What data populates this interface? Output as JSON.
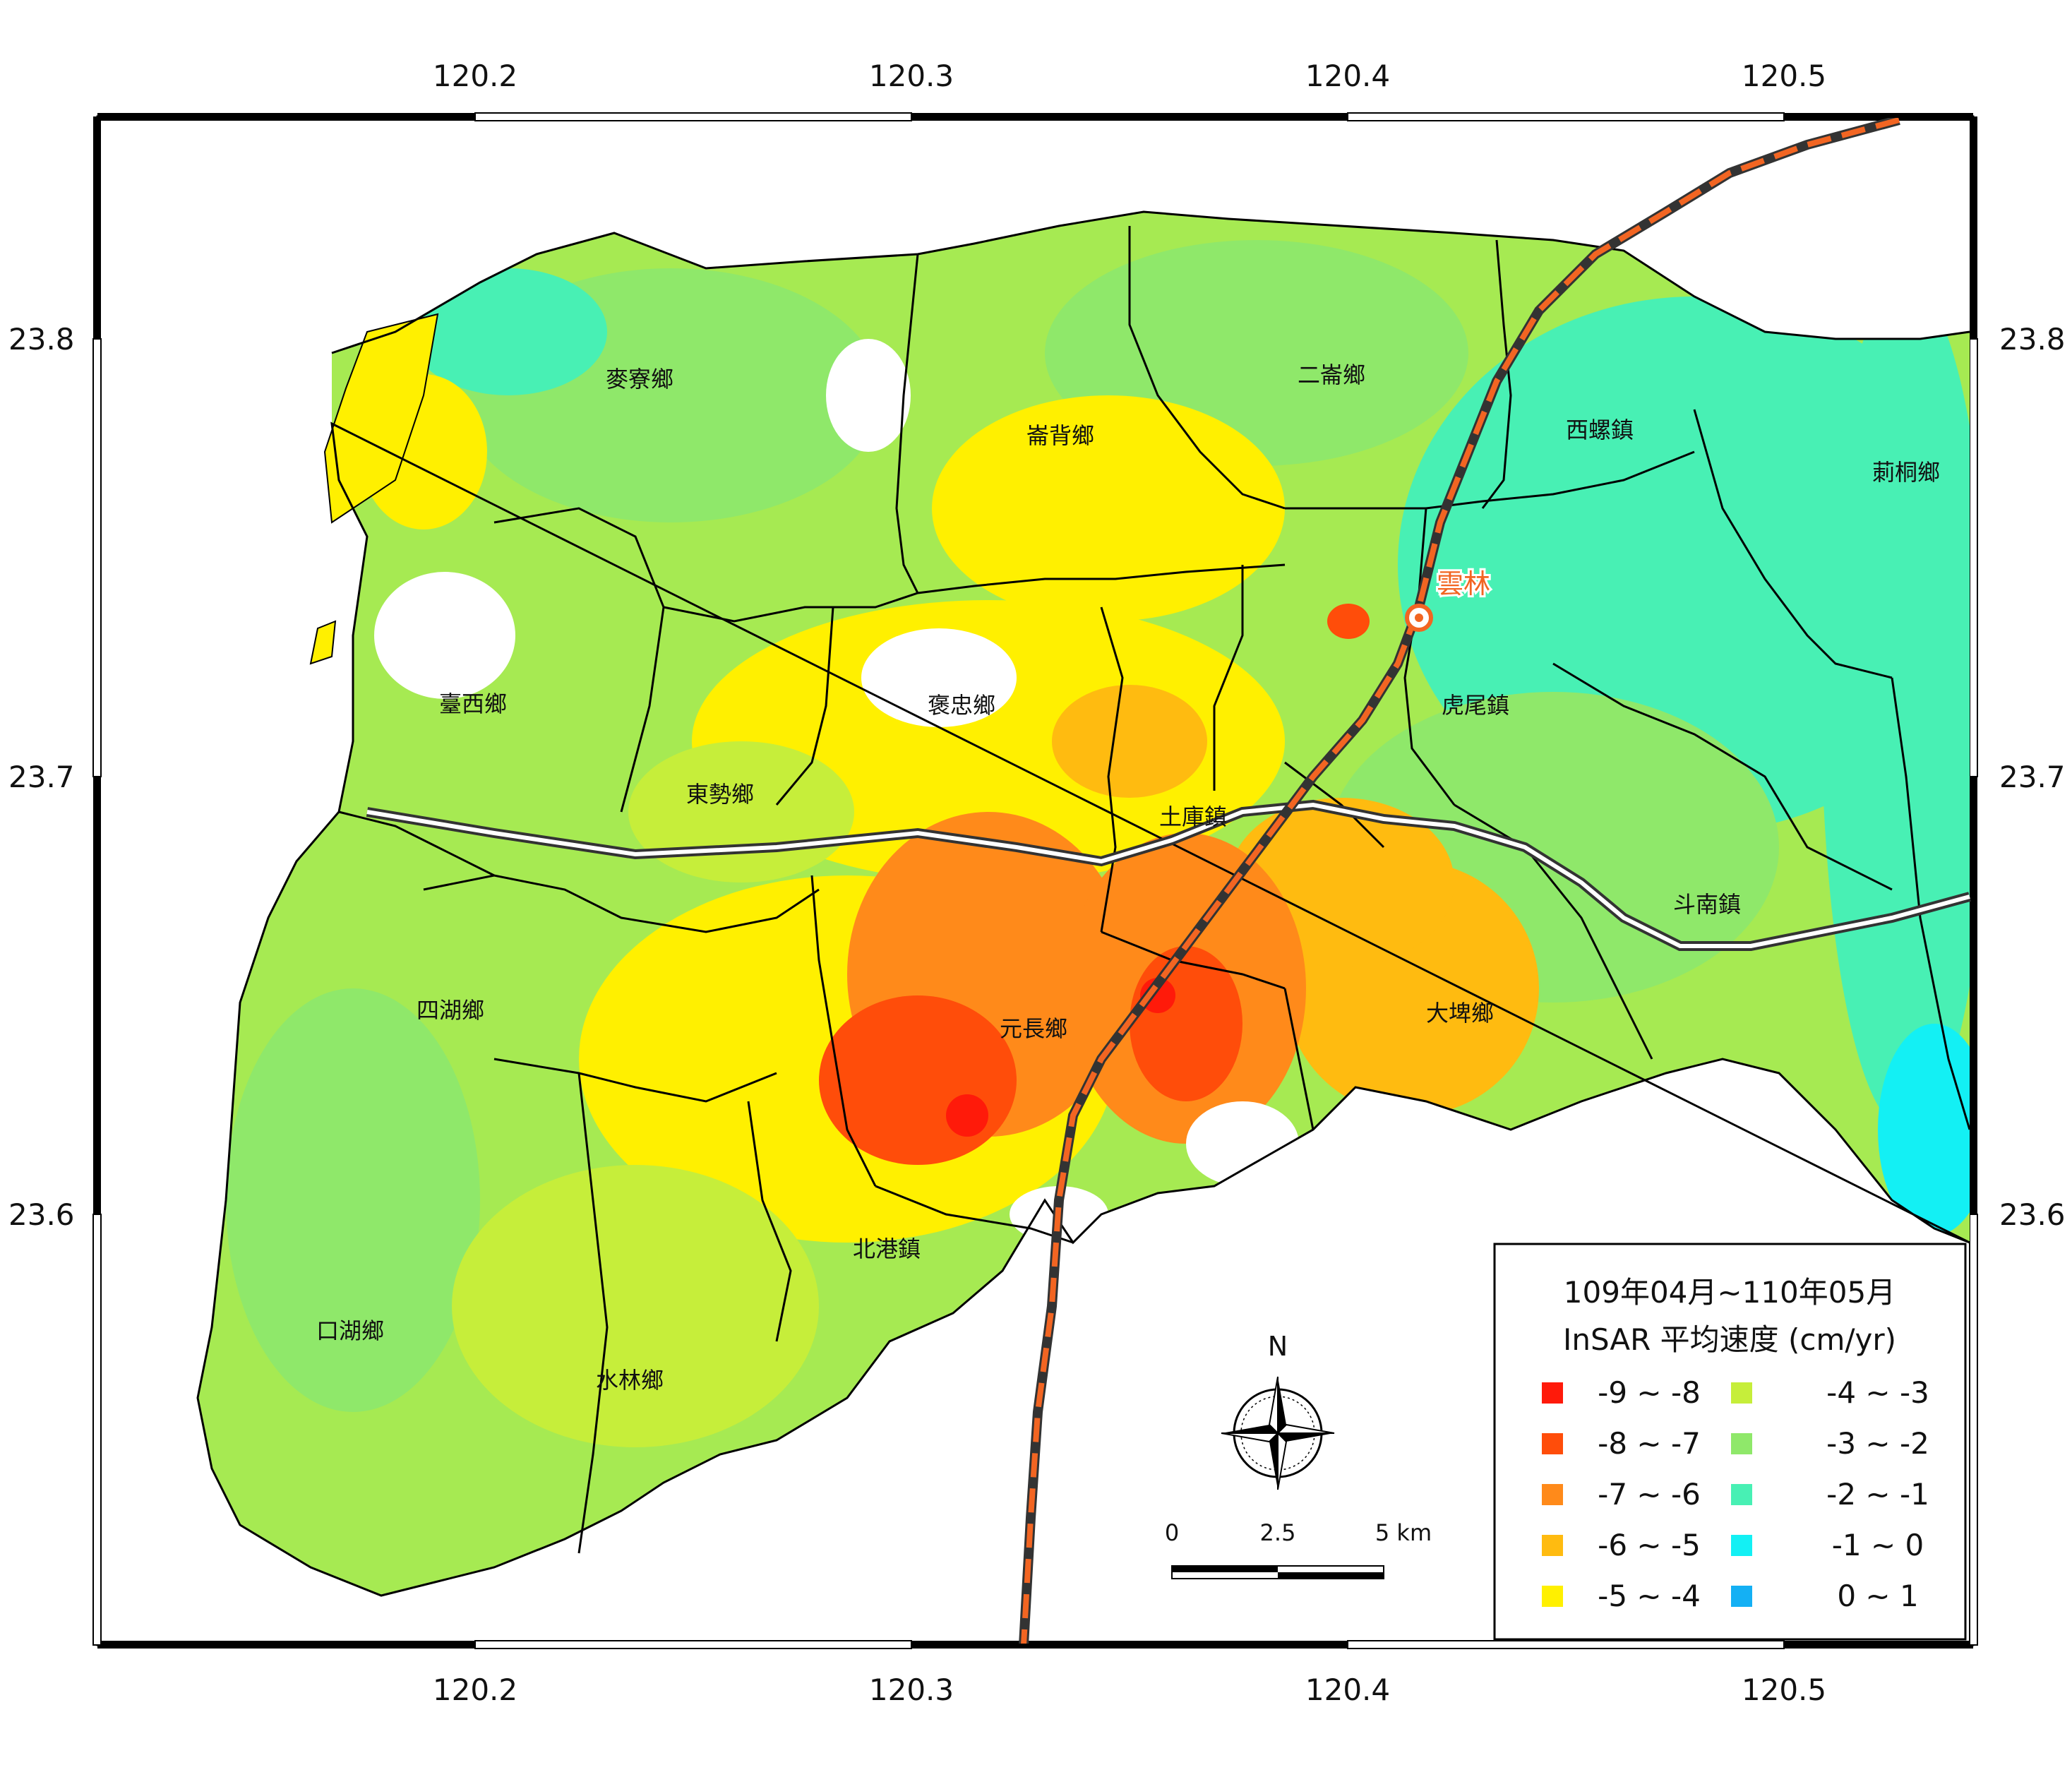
{
  "axes": {
    "lon_ticks": [
      "120.2",
      "120.3",
      "120.4",
      "120.5"
    ],
    "lat_ticks": [
      "23.8",
      "23.7",
      "23.6"
    ]
  },
  "towns": [
    {
      "name": "麥寮鄉"
    },
    {
      "name": "二崙鄉"
    },
    {
      "name": "崙背鄉"
    },
    {
      "name": "西螺鎮"
    },
    {
      "name": "莿桐鄉"
    },
    {
      "name": "臺西鄉"
    },
    {
      "name": "褒忠鄉"
    },
    {
      "name": "虎尾鎮"
    },
    {
      "name": "東勢鄉"
    },
    {
      "name": "土庫鎮"
    },
    {
      "name": "斗南鎮"
    },
    {
      "name": "四湖鄉"
    },
    {
      "name": "元長鄉"
    },
    {
      "name": "大埤鄉"
    },
    {
      "name": "北港鎮"
    },
    {
      "name": "口湖鄉"
    },
    {
      "name": "水林鄉"
    }
  ],
  "station": {
    "name": "雲林",
    "color": "#f26522"
  },
  "legend": {
    "title_line1": "109年04月~110年05月",
    "title_line2": "InSAR 平均速度 (cm/yr)",
    "classes": [
      {
        "label": "-9 ~ -8",
        "color": "#ff1a0a"
      },
      {
        "label": "-8 ~ -7",
        "color": "#ff4d0a"
      },
      {
        "label": "-7 ~ -6",
        "color": "#ff8a1a"
      },
      {
        "label": "-6 ~ -5",
        "color": "#ffbb10"
      },
      {
        "label": "-5 ~ -4",
        "color": "#fff000"
      },
      {
        "label": "-4 ~ -3",
        "color": "#c6ee3a"
      },
      {
        "label": "-3 ~ -2",
        "color": "#8fe86a"
      },
      {
        "label": "-2 ~ -1",
        "color": "#48f0b4"
      },
      {
        "label": "-1 ~ 0",
        "color": "#13f0f4"
      },
      {
        "label": "0 ~ 1",
        "color": "#14b0f4"
      }
    ]
  },
  "north_label": "N",
  "scalebar": {
    "labels": [
      "0",
      "2.5",
      "5 km"
    ]
  },
  "colors": {
    "rail": "#f26522",
    "highway": "#333333",
    "boundary": "#000000"
  }
}
